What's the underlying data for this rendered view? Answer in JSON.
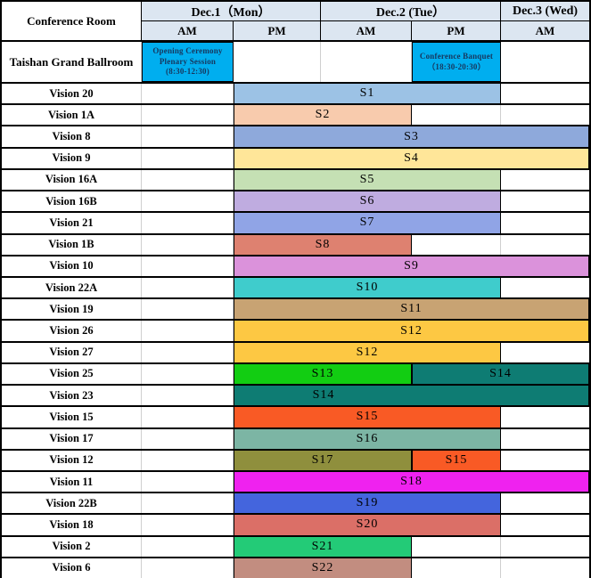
{
  "table": {
    "corner_label": "Conference Room",
    "day_headers": [
      {
        "label": "Dec.1（Mon）",
        "slots": [
          "AM",
          "PM"
        ]
      },
      {
        "label": "Dec.2 (Tue）",
        "slots": [
          "AM",
          "PM"
        ]
      },
      {
        "label": "Dec.3 (Wed)",
        "slots": [
          "AM"
        ]
      }
    ],
    "colors": {
      "header_bg": "#DCE6F1",
      "event_bg": "#00AEEF",
      "event_text": "#17375E"
    },
    "ballroom_row": {
      "room": "Taishan Grand Ballroom",
      "events": [
        {
          "lines": [
            "Opening Ceremony",
            "Plenary Session",
            "(8:30-12:30)"
          ],
          "slot": 0
        },
        {
          "lines": [
            "Conference Banquet",
            "（18:30-20:30）"
          ],
          "slot": 3
        }
      ]
    },
    "rows": [
      {
        "room": "Vision 20",
        "bars": [
          {
            "label": "S1",
            "start": 1,
            "end": 4,
            "color": "#9CC2E5"
          }
        ]
      },
      {
        "room": "Vision 1A",
        "bars": [
          {
            "label": "S2",
            "start": 1,
            "end": 3,
            "color": "#F8CBAD"
          }
        ]
      },
      {
        "room": "Vision 8",
        "bars": [
          {
            "label": "S3",
            "start": 1,
            "end": 5,
            "color": "#8EA9DB"
          }
        ]
      },
      {
        "room": "Vision 9",
        "bars": [
          {
            "label": "S4",
            "start": 1,
            "end": 5,
            "color": "#FFE699"
          }
        ]
      },
      {
        "room": "Vision 16A",
        "bars": [
          {
            "label": "S5",
            "start": 1,
            "end": 4,
            "color": "#C5E0B4"
          }
        ]
      },
      {
        "room": "Vision 16B",
        "bars": [
          {
            "label": "S6",
            "start": 1,
            "end": 4,
            "color": "#BFACE0"
          }
        ]
      },
      {
        "room": "Vision 21",
        "bars": [
          {
            "label": "S7",
            "start": 1,
            "end": 4,
            "color": "#90A4E6"
          }
        ]
      },
      {
        "room": "Vision 1B",
        "bars": [
          {
            "label": "S8",
            "start": 1,
            "end": 3,
            "color": "#DE8170"
          }
        ]
      },
      {
        "room": "Vision 10",
        "bars": [
          {
            "label": "S9",
            "start": 1,
            "end": 5,
            "color": "#DB92DB"
          }
        ]
      },
      {
        "room": "Vision 22A",
        "bars": [
          {
            "label": "S10",
            "start": 1,
            "end": 4,
            "color": "#3FCCCC"
          }
        ]
      },
      {
        "room": "Vision 19",
        "bars": [
          {
            "label": "S11",
            "start": 1,
            "end": 5,
            "color": "#C8A373"
          }
        ]
      },
      {
        "room": "Vision 26",
        "bars": [
          {
            "label": "S12",
            "start": 1,
            "end": 5,
            "color": "#FDC843"
          }
        ]
      },
      {
        "room": "Vision 27",
        "bars": [
          {
            "label": "S12",
            "start": 1,
            "end": 4,
            "color": "#FDC843"
          }
        ]
      },
      {
        "room": "Vision 25",
        "bars": [
          {
            "label": "S13",
            "start": 1,
            "end": 3,
            "color": "#12CD12"
          },
          {
            "label": "S14",
            "start": 3,
            "end": 5,
            "color": "#0E7C73"
          }
        ]
      },
      {
        "room": "Vision 23",
        "bars": [
          {
            "label": "S14",
            "start": 1,
            "end": 5,
            "label_end": 3,
            "color": "#0E7C73"
          }
        ]
      },
      {
        "room": "Vision 15",
        "bars": [
          {
            "label": "S15",
            "start": 1,
            "end": 4,
            "color": "#F95A25"
          }
        ]
      },
      {
        "room": "Vision 17",
        "bars": [
          {
            "label": "S16",
            "start": 1,
            "end": 4,
            "color": "#7CB5A4"
          }
        ]
      },
      {
        "room": "Vision 12",
        "bars": [
          {
            "label": "S17",
            "start": 1,
            "end": 3,
            "color": "#8F8F3D"
          },
          {
            "label": "S15",
            "start": 3,
            "end": 4,
            "color": "#F95A25"
          }
        ]
      },
      {
        "room": "Vision 11",
        "bars": [
          {
            "label": "S18",
            "start": 1,
            "end": 5,
            "color": "#EF22EF"
          }
        ]
      },
      {
        "room": "Vision 22B",
        "bars": [
          {
            "label": "S19",
            "start": 1,
            "end": 4,
            "color": "#4465DD"
          }
        ]
      },
      {
        "room": "Vision 18",
        "bars": [
          {
            "label": "S20",
            "start": 1,
            "end": 4,
            "color": "#DB6F67"
          }
        ]
      },
      {
        "room": "Vision 2",
        "bars": [
          {
            "label": "S21",
            "start": 1,
            "end": 3,
            "color": "#23CB77"
          }
        ]
      },
      {
        "room": "Vision 6",
        "bars": [
          {
            "label": "S22",
            "start": 1,
            "end": 3,
            "color": "#C28D80"
          }
        ]
      }
    ]
  }
}
